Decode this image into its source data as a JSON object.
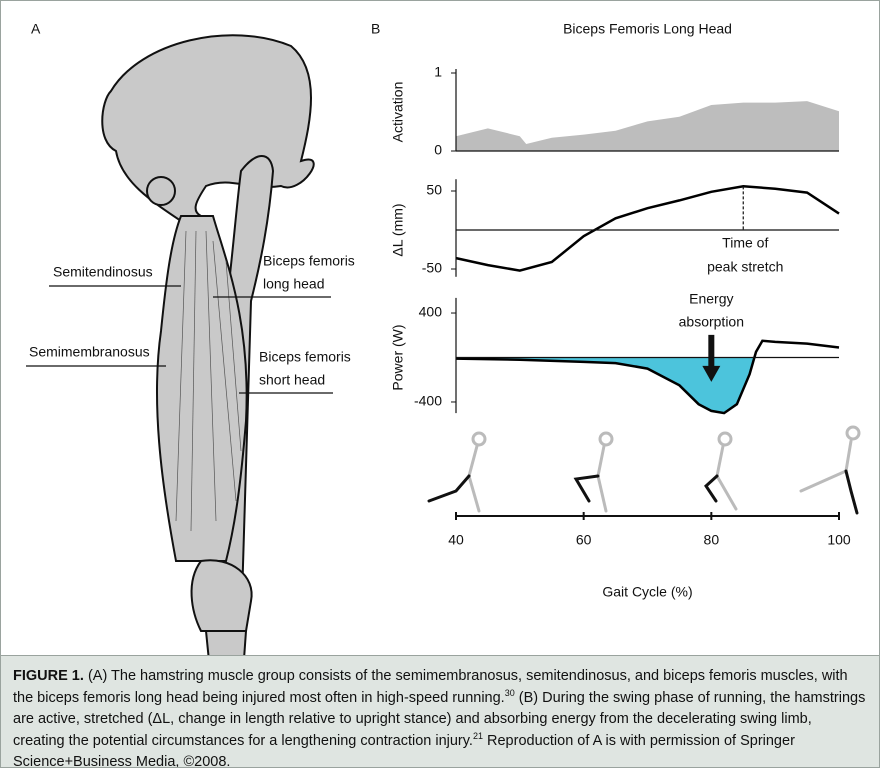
{
  "panel_labels": [
    "A",
    "B"
  ],
  "anatomy_labels": [
    {
      "lines": [
        "Semitendinosus"
      ]
    },
    {
      "lines": [
        "Semimembranosus"
      ]
    },
    {
      "lines": [
        "Biceps femoris",
        "long head"
      ]
    },
    {
      "lines": [
        "Biceps femoris",
        "short head"
      ]
    }
  ],
  "chart_data": [
    {
      "type": "area",
      "title": "Biceps Femoris Long Head",
      "ylabel": "Activation",
      "x": [
        40,
        45,
        50,
        51,
        55,
        60,
        65,
        70,
        75,
        80,
        85,
        90,
        95,
        100
      ],
      "values": [
        0.19,
        0.29,
        0.19,
        0.09,
        0.17,
        0.21,
        0.26,
        0.38,
        0.44,
        0.59,
        0.62,
        0.62,
        0.64,
        0.51
      ],
      "color": "#bdbdbd",
      "xlim": [
        40,
        100
      ],
      "ylim": [
        0,
        1
      ],
      "yticks": [
        0,
        1
      ]
    },
    {
      "type": "line",
      "ylabel": "ΔL (mm)",
      "x": [
        40,
        45,
        50,
        55,
        60,
        65,
        70,
        75,
        80,
        85,
        90,
        95,
        100
      ],
      "values": [
        -36,
        -45,
        -52,
        -41,
        -8,
        15,
        28,
        38,
        49,
        56,
        53,
        48,
        21
      ],
      "color": "#000000",
      "xlim": [
        40,
        100
      ],
      "ylim": [
        -60,
        60
      ],
      "yticks": [
        -50,
        50
      ],
      "annotation": {
        "x": 85,
        "text": [
          "Time of",
          "peak stretch"
        ]
      }
    },
    {
      "type": "area",
      "ylabel": "Power (W)",
      "x": [
        40,
        50,
        60,
        65,
        70,
        75,
        78,
        80,
        82,
        84,
        86,
        87,
        88,
        90,
        95,
        100
      ],
      "values": [
        -10,
        -20,
        -40,
        -50,
        -100,
        -250,
        -420,
        -480,
        -500,
        -420,
        -150,
        50,
        150,
        140,
        125,
        90
      ],
      "color": "#000000",
      "fill": "#4cc4dc",
      "fill_below_zero_only": true,
      "xlim": [
        40,
        100
      ],
      "ylim": [
        -500,
        500
      ],
      "yticks": [
        -400,
        400
      ],
      "annotation": {
        "x": 80,
        "text": [
          "Energy",
          "absorption"
        ]
      },
      "xticks": [
        40,
        60,
        80,
        100
      ],
      "xlabel": "Gait Cycle (%)"
    }
  ],
  "caption": {
    "label": "FIGURE 1.",
    "text_1": "(A) The hamstring muscle group consists of the semimembranosus, semitendinosus, and biceps femoris muscles, with the biceps femoris long head being injured most often in high-speed running.",
    "ref_1": "30",
    "text_2": "(B) During the swing phase of running, the hamstrings are active, stretched (ΔL, change in length relative to upright stance) and absorbing energy from the decelerating swing limb, creating the potential circumstances for a lengthening contraction injury.",
    "ref_2": "21",
    "text_3": "Reproduction of A is with permission of Springer Science+Business Media, ©2008."
  }
}
